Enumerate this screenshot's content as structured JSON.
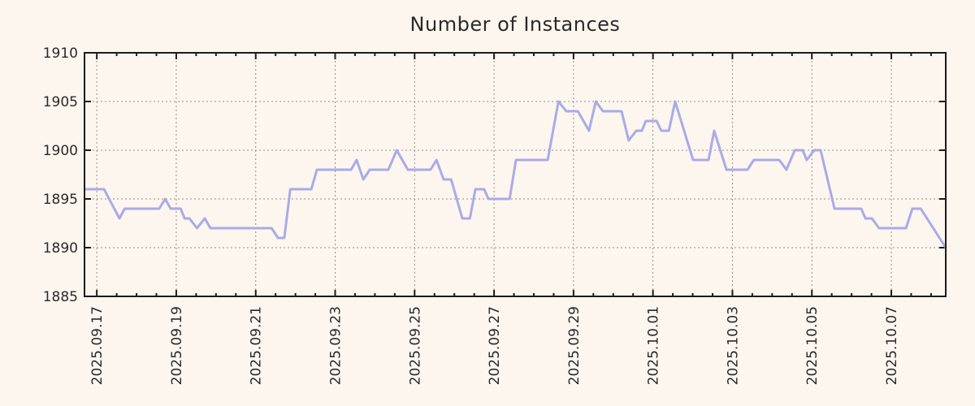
{
  "chart_data": {
    "type": "line",
    "title": "Number of Instances",
    "xlabel": "",
    "ylabel": "",
    "legend": "none",
    "grid": "dotted",
    "background_color": "#fdf6ee",
    "line_color": "#a9abe8",
    "axis_color": "#1c1c1c",
    "grid_color": "#8f8f8f",
    "text_color": "#2a2a2a",
    "ylim": [
      1885,
      1910
    ],
    "y_ticks": [
      1885,
      1890,
      1895,
      1900,
      1905,
      1910
    ],
    "xlim_days": [
      -0.31,
      21.37
    ],
    "x_minor_tick_step_days": 0.5,
    "x_ticks": [
      {
        "label": "2025.09.17",
        "day": 0
      },
      {
        "label": "2025.09.19",
        "day": 2
      },
      {
        "label": "2025.09.21",
        "day": 4
      },
      {
        "label": "2025.09.23",
        "day": 6
      },
      {
        "label": "2025.09.25",
        "day": 8
      },
      {
        "label": "2025.09.27",
        "day": 10
      },
      {
        "label": "2025.09.29",
        "day": 12
      },
      {
        "label": "2025.10.01",
        "day": 14
      },
      {
        "label": "2025.10.03",
        "day": 16
      },
      {
        "label": "2025.10.05",
        "day": 18
      },
      {
        "label": "2025.10.07",
        "day": 20
      }
    ],
    "series": [
      {
        "name": "Number of Instances",
        "points": [
          [
            -0.31,
            1896
          ],
          [
            0.18,
            1896
          ],
          [
            0.57,
            1893
          ],
          [
            0.7,
            1894
          ],
          [
            1.57,
            1894
          ],
          [
            1.72,
            1895
          ],
          [
            1.86,
            1894
          ],
          [
            2.11,
            1894
          ],
          [
            2.21,
            1893
          ],
          [
            2.33,
            1893
          ],
          [
            2.52,
            1892
          ],
          [
            2.72,
            1893
          ],
          [
            2.86,
            1892
          ],
          [
            4.4,
            1892
          ],
          [
            4.56,
            1891
          ],
          [
            4.72,
            1891
          ],
          [
            4.87,
            1896
          ],
          [
            5.4,
            1896
          ],
          [
            5.54,
            1898
          ],
          [
            6.4,
            1898
          ],
          [
            6.54,
            1899
          ],
          [
            6.71,
            1897
          ],
          [
            6.87,
            1898
          ],
          [
            7.34,
            1898
          ],
          [
            7.55,
            1900
          ],
          [
            7.83,
            1898
          ],
          [
            8.4,
            1898
          ],
          [
            8.55,
            1899
          ],
          [
            8.73,
            1897
          ],
          [
            8.92,
            1897
          ],
          [
            9.2,
            1893
          ],
          [
            9.39,
            1893
          ],
          [
            9.53,
            1896
          ],
          [
            9.75,
            1896
          ],
          [
            9.86,
            1895
          ],
          [
            10.39,
            1895
          ],
          [
            10.55,
            1899
          ],
          [
            11.35,
            1899
          ],
          [
            11.62,
            1905
          ],
          [
            11.82,
            1904
          ],
          [
            12.11,
            1904
          ],
          [
            12.39,
            1902
          ],
          [
            12.56,
            1905
          ],
          [
            12.74,
            1904
          ],
          [
            13.21,
            1904
          ],
          [
            13.39,
            1901
          ],
          [
            13.58,
            1902
          ],
          [
            13.72,
            1902
          ],
          [
            13.82,
            1903
          ],
          [
            14.09,
            1903
          ],
          [
            14.21,
            1902
          ],
          [
            14.4,
            1902
          ],
          [
            14.56,
            1905
          ],
          [
            15.01,
            1899
          ],
          [
            15.4,
            1899
          ],
          [
            15.54,
            1902
          ],
          [
            15.85,
            1898
          ],
          [
            16.38,
            1898
          ],
          [
            16.54,
            1899
          ],
          [
            17.18,
            1899
          ],
          [
            17.36,
            1898
          ],
          [
            17.57,
            1900
          ],
          [
            17.77,
            1900
          ],
          [
            17.87,
            1899
          ],
          [
            18.06,
            1900
          ],
          [
            18.22,
            1900
          ],
          [
            18.57,
            1894
          ],
          [
            19.24,
            1894
          ],
          [
            19.35,
            1893
          ],
          [
            19.51,
            1893
          ],
          [
            19.69,
            1892
          ],
          [
            20.37,
            1892
          ],
          [
            20.53,
            1894
          ],
          [
            20.74,
            1894
          ],
          [
            21.37,
            1890
          ]
        ]
      }
    ]
  }
}
